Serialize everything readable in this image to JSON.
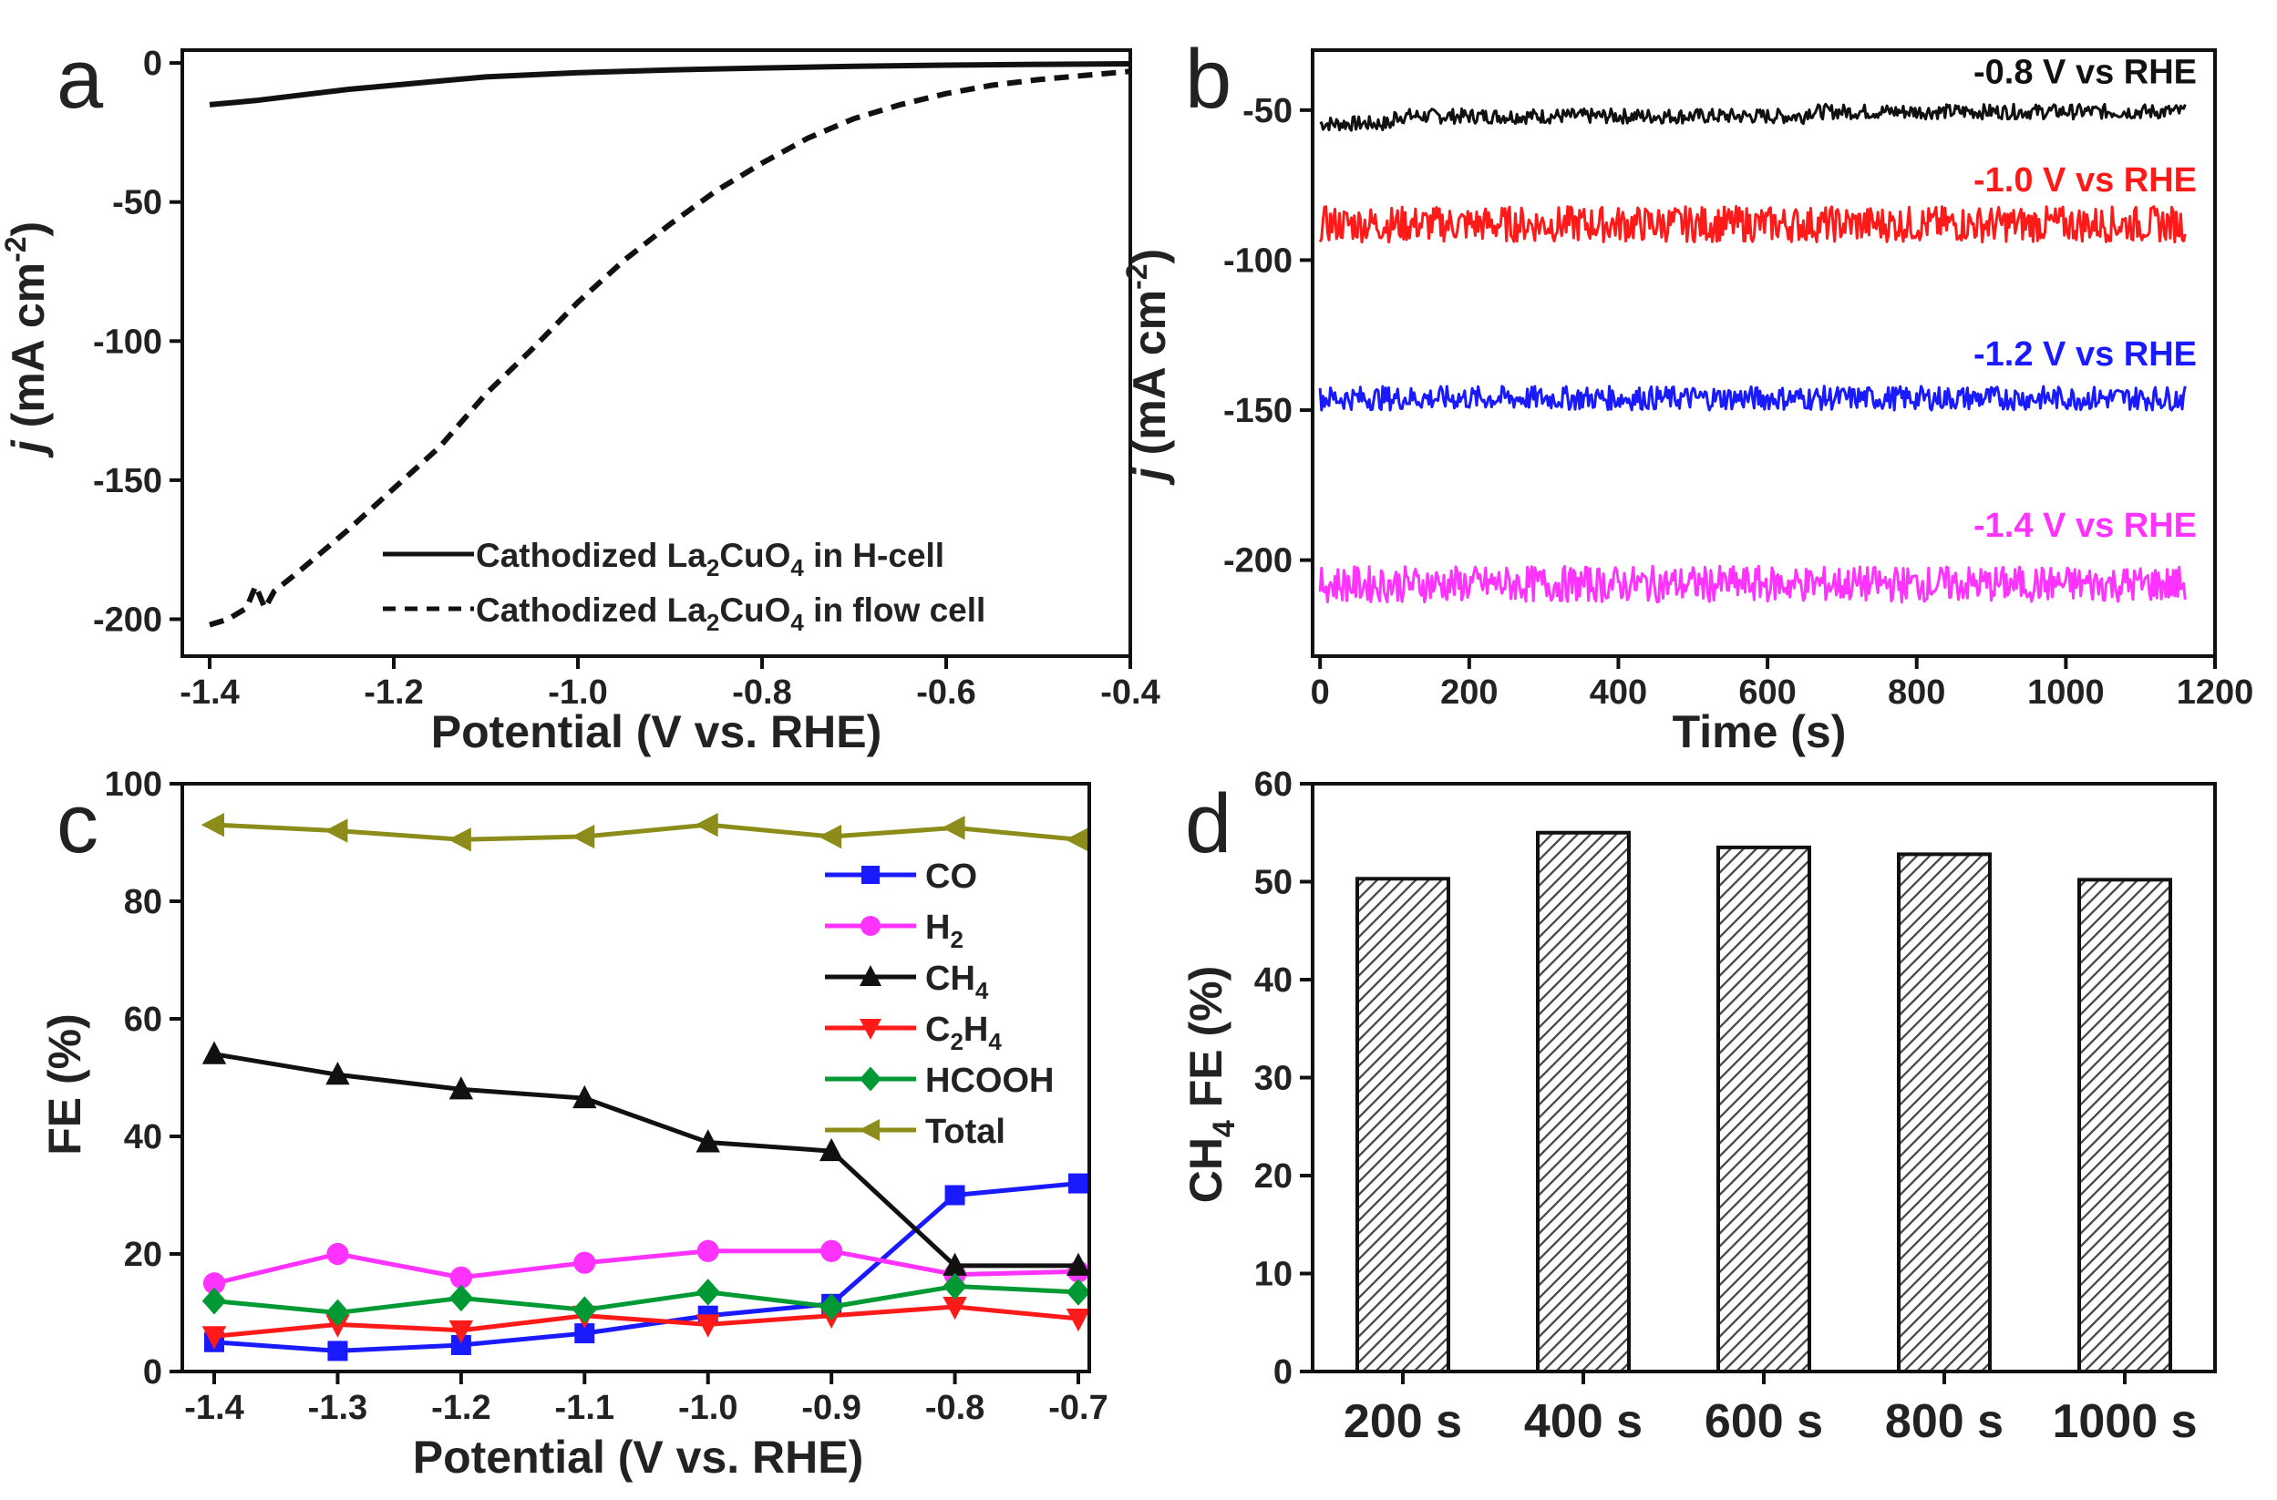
{
  "colors": {
    "black": "#111111",
    "red": "#ff1a1a",
    "blue": "#1a1aff",
    "magenta": "#ff33ff",
    "green": "#009933",
    "olive": "#8c8c1a",
    "hatch": "#555555"
  },
  "chart_data": [
    {
      "panel": "a",
      "type": "line",
      "xlabel": "Potential (V vs. RHE)",
      "ylabel": "j (mA cm-2)",
      "ylabel_italic": "j",
      "ylabel_rest": " (mA cm",
      "ylabel_sup": "-2",
      "ylabel_close": ")",
      "xlim": [
        -1.4,
        -0.4
      ],
      "ylim": [
        -210,
        2
      ],
      "xticks": [
        -1.4,
        -1.2,
        -1.0,
        -0.8,
        -0.6,
        -0.4
      ],
      "xtick_labels": [
        "-1.4",
        "-1.2",
        "-1.0",
        "-0.8",
        "-0.6",
        "-0.4"
      ],
      "yticks": [
        0,
        -50,
        -100,
        -150,
        -200
      ],
      "ytick_labels": [
        "0",
        "-50",
        "-100",
        "-150",
        "-200"
      ],
      "legend": [
        {
          "name": "Cathodized La2CuO4 in H-cell",
          "pre": "Cathodized La",
          "s1": "2",
          "mid": "CuO",
          "s2": "4",
          "post": " in H-cell",
          "style": "solid"
        },
        {
          "name": "Cathodized La2CuO4 in flow cell",
          "pre": "Cathodized La",
          "s1": "2",
          "mid": "CuO",
          "s2": "4",
          "post": " in flow cell",
          "style": "dashed"
        }
      ],
      "series": [
        {
          "name": "H-cell",
          "style": "solid",
          "x": [
            -1.4,
            -1.35,
            -1.3,
            -1.25,
            -1.2,
            -1.15,
            -1.1,
            -1.0,
            -0.9,
            -0.8,
            -0.7,
            -0.6,
            -0.5,
            -0.4
          ],
          "y": [
            -15,
            -13.5,
            -11.5,
            -9.5,
            -8,
            -6.5,
            -5,
            -3.5,
            -2.5,
            -1.8,
            -1.2,
            -0.8,
            -0.5,
            -0.3
          ]
        },
        {
          "name": "flow cell",
          "style": "dashed",
          "x": [
            -1.4,
            -1.38,
            -1.36,
            -1.35,
            -1.34,
            -1.33,
            -1.3,
            -1.25,
            -1.2,
            -1.15,
            -1.1,
            -1.05,
            -1.0,
            -0.95,
            -0.9,
            -0.85,
            -0.8,
            -0.75,
            -0.7,
            -0.65,
            -0.6,
            -0.55,
            -0.5,
            -0.45,
            -0.4
          ],
          "y": [
            -202,
            -200,
            -196,
            -188,
            -196,
            -190,
            -182,
            -168,
            -153,
            -138,
            -119,
            -103,
            -86,
            -71,
            -58,
            -46,
            -36,
            -27,
            -20,
            -15,
            -11,
            -8,
            -6,
            -4.5,
            -3
          ]
        }
      ]
    },
    {
      "panel": "b",
      "type": "line",
      "xlabel": "Time (s)",
      "ylabel": "j (mA cm-2)",
      "ylabel_italic": "j",
      "ylabel_rest": " (mA cm",
      "ylabel_sup": "-2",
      "ylabel_close": ")",
      "xlim": [
        -10,
        1200
      ],
      "ylim": [
        -232,
        -30
      ],
      "xticks": [
        0,
        200,
        400,
        600,
        800,
        1000,
        1200
      ],
      "xtick_labels": [
        "0",
        "200",
        "400",
        "600",
        "800",
        "1000",
        "1200"
      ],
      "yticks": [
        -50,
        -100,
        -150,
        -200
      ],
      "ytick_labels": [
        "-50",
        "-100",
        "-150",
        "-200"
      ],
      "series": [
        {
          "name": "-0.8 V vs RHE",
          "color": "#111111",
          "mean": -52,
          "noise": 2.5,
          "x_end": 1160
        },
        {
          "name": "-1.0 V vs RHE",
          "color": "#ff1a1a",
          "mean": -88,
          "noise": 6,
          "x_end": 1160
        },
        {
          "name": "-1.2 V vs RHE",
          "color": "#1a1aff",
          "mean": -146,
          "noise": 4,
          "x_end": 1160
        },
        {
          "name": "-1.4 V vs RHE",
          "color": "#ff33ff",
          "mean": -208,
          "noise": 6,
          "x_end": 1160
        }
      ]
    },
    {
      "panel": "c",
      "type": "line",
      "xlabel": "Potential (V vs. RHE)",
      "ylabel": "FE (%)",
      "xlim": [
        -1.4,
        -0.7
      ],
      "ylim": [
        0,
        100
      ],
      "xticks": [
        -1.4,
        -1.3,
        -1.2,
        -1.1,
        -1.0,
        -0.9,
        -0.8,
        -0.7
      ],
      "xtick_labels": [
        "-1.4",
        "-1.3",
        "-1.2",
        "-1.1",
        "-1.0",
        "-0.9",
        "-0.8",
        "-0.7"
      ],
      "yticks": [
        0,
        20,
        40,
        60,
        80,
        100
      ],
      "ytick_labels": [
        "0",
        "20",
        "40",
        "60",
        "80",
        "100"
      ],
      "x": [
        -1.4,
        -1.3,
        -1.2,
        -1.1,
        -1.0,
        -0.9,
        -0.8,
        -0.7
      ],
      "series": [
        {
          "name": "CO",
          "label": "CO",
          "sub": "",
          "color": "#1a1aff",
          "marker": "square",
          "values": [
            5,
            3.5,
            4.5,
            6.5,
            9.5,
            11.5,
            30,
            32
          ]
        },
        {
          "name": "H2",
          "label": "H",
          "sub": "2",
          "color": "#ff33ff",
          "marker": "circle",
          "values": [
            15,
            20,
            16,
            18.5,
            20.5,
            20.5,
            16.5,
            17
          ]
        },
        {
          "name": "CH4",
          "label": "CH",
          "sub": "4",
          "color": "#111111",
          "marker": "triangle-up",
          "values": [
            54,
            50.5,
            48,
            46.5,
            39,
            37.5,
            18,
            18
          ]
        },
        {
          "name": "C2H4",
          "label": "C",
          "sub": "2",
          "label2": "H",
          "sub2": "4",
          "color": "#ff1a1a",
          "marker": "triangle-down",
          "values": [
            6,
            8,
            7,
            9.5,
            8,
            9.5,
            11,
            9
          ]
        },
        {
          "name": "HCOOH",
          "label": "HCOOH",
          "sub": "",
          "color": "#009933",
          "marker": "diamond",
          "values": [
            12,
            10,
            12.5,
            10.5,
            13.5,
            11,
            14.5,
            13.5
          ]
        },
        {
          "name": "Total",
          "label": "Total",
          "sub": "",
          "color": "#8c8c1a",
          "marker": "triangle-left",
          "values": [
            93,
            92,
            90.5,
            91,
            93,
            91,
            92.5,
            90.5
          ]
        }
      ]
    },
    {
      "panel": "d",
      "type": "bar",
      "ylabel": "CH4 FE (%)",
      "ylabel_pre": "CH",
      "ylabel_sub": "4",
      "ylabel_post": " FE (%)",
      "xlabel": "",
      "categories": [
        "200 s",
        "400 s",
        "600 s",
        "800 s",
        "1000 s"
      ],
      "values": [
        50.3,
        55,
        53.5,
        52.8,
        50.2
      ],
      "ylim": [
        0,
        60
      ],
      "yticks": [
        0,
        10,
        20,
        30,
        40,
        50,
        60
      ],
      "ytick_labels": [
        "0",
        "10",
        "20",
        "30",
        "40",
        "50",
        "60"
      ]
    }
  ],
  "panel_letters": [
    "a",
    "b",
    "c",
    "d"
  ]
}
